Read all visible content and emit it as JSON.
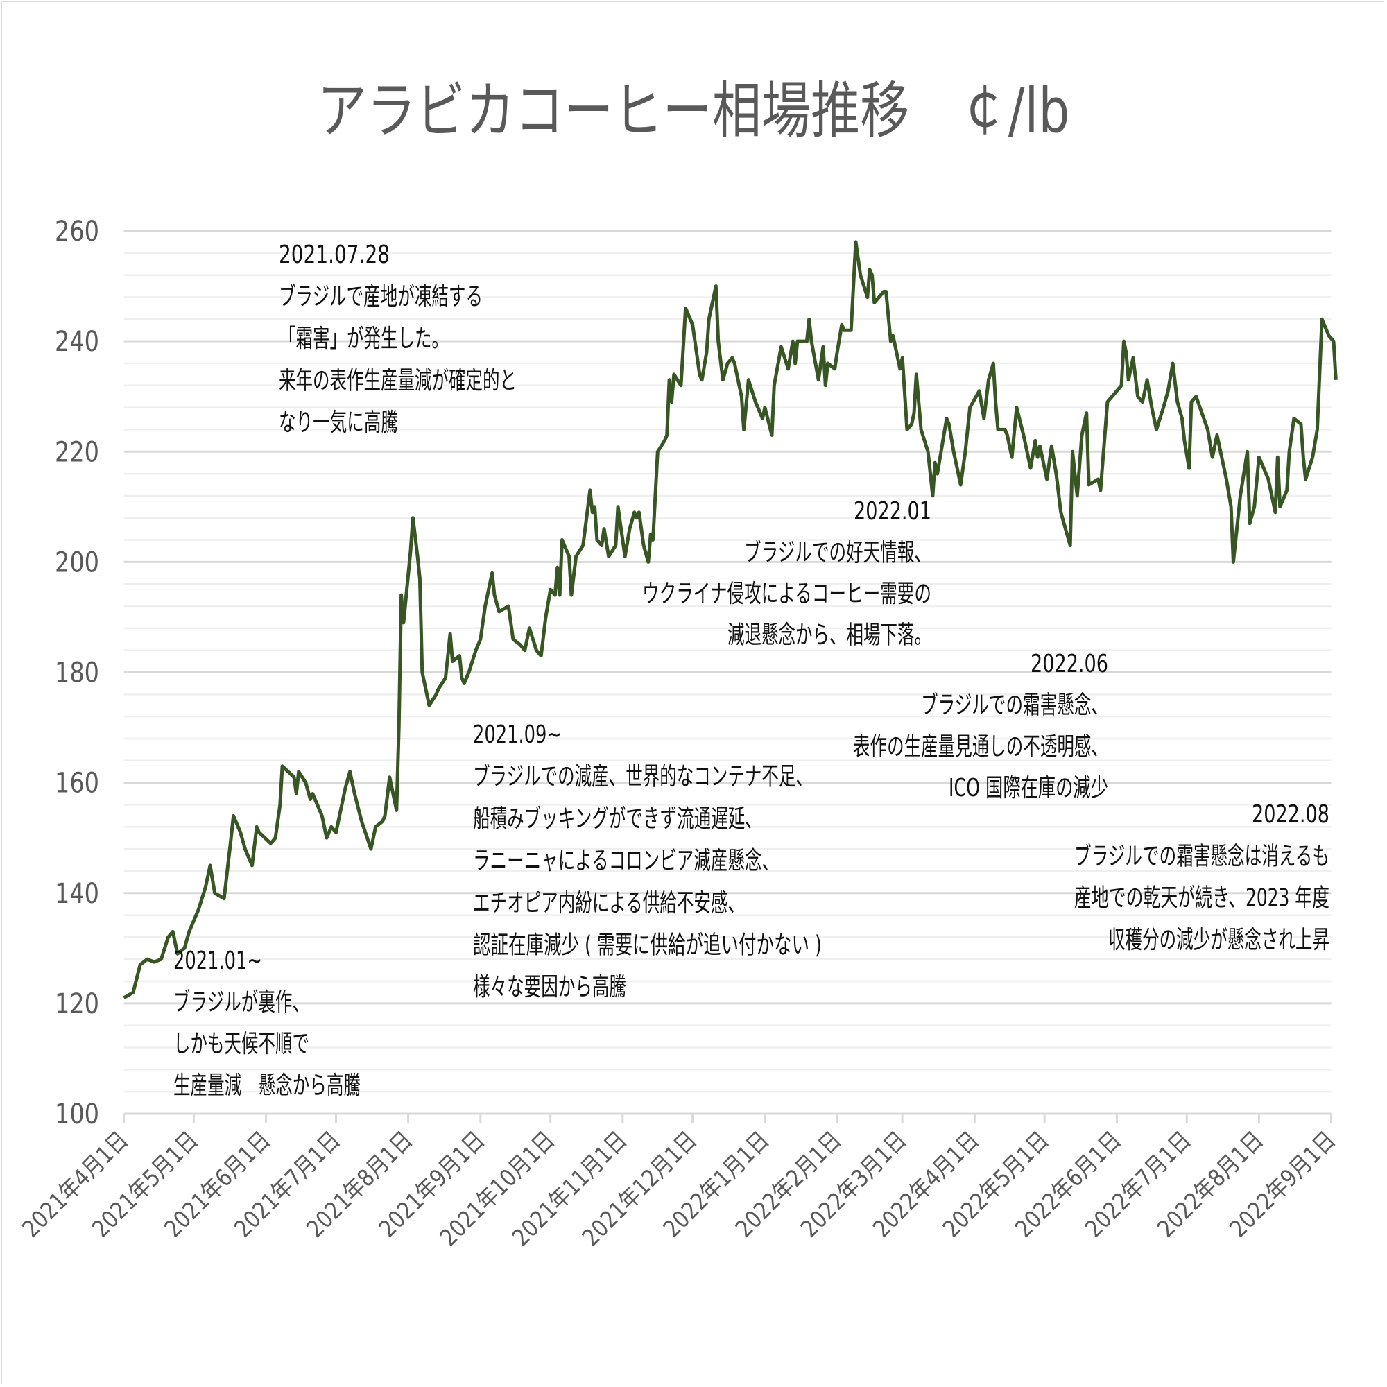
{
  "chart_data": {
    "type": "line",
    "title": "アラビカコーヒー相場推移　￠/lb",
    "xlabel": "",
    "ylabel": "",
    "ylim": [
      100,
      260
    ],
    "yticks": [
      100,
      120,
      140,
      160,
      180,
      200,
      220,
      240,
      260
    ],
    "xticks": [
      "2021年4月1日",
      "2021年5月1日",
      "2021年6月1日",
      "2021年7月1日",
      "2021年8月1日",
      "2021年9月1日",
      "2021年10月1日",
      "2021年11月1日",
      "2021年12月1日",
      "2022年1月1日",
      "2022年2月1日",
      "2022年3月1日",
      "2022年4月1日",
      "2022年5月1日",
      "2022年6月1日",
      "2022年7月1日",
      "2022年8月1日",
      "2022年9月1日"
    ],
    "grid": true,
    "line_color": "#375623",
    "series": [
      {
        "points": [
          [
            "2021-04-01",
            121
          ],
          [
            "2021-04-05",
            122
          ],
          [
            "2021-04-08",
            127
          ],
          [
            "2021-04-11",
            128
          ],
          [
            "2021-04-14",
            127.5
          ],
          [
            "2021-04-17",
            128
          ],
          [
            "2021-04-20",
            132
          ],
          [
            "2021-04-22",
            133
          ],
          [
            "2021-04-24",
            129
          ],
          [
            "2021-04-27",
            130
          ],
          [
            "2021-04-29",
            133
          ],
          [
            "2021-05-03",
            137
          ],
          [
            "2021-05-06",
            141
          ],
          [
            "2021-05-08",
            145
          ],
          [
            "2021-05-10",
            140
          ],
          [
            "2021-05-14",
            139
          ],
          [
            "2021-05-17",
            150
          ],
          [
            "2021-05-18",
            154
          ],
          [
            "2021-05-21",
            151
          ],
          [
            "2021-05-23",
            148
          ],
          [
            "2021-05-25",
            146
          ],
          [
            "2021-05-26",
            145
          ],
          [
            "2021-05-28",
            152
          ],
          [
            "2021-05-29",
            151
          ],
          [
            "2021-06-03",
            149
          ],
          [
            "2021-06-05",
            150
          ],
          [
            "2021-06-07",
            156
          ],
          [
            "2021-06-08",
            163
          ],
          [
            "2021-06-13",
            161
          ],
          [
            "2021-06-14",
            158
          ],
          [
            "2021-06-15",
            162
          ],
          [
            "2021-06-18",
            160
          ],
          [
            "2021-06-20",
            157
          ],
          [
            "2021-06-21",
            158
          ],
          [
            "2021-06-25",
            154
          ],
          [
            "2021-06-27",
            150
          ],
          [
            "2021-06-29",
            152
          ],
          [
            "2021-07-01",
            151
          ],
          [
            "2021-07-03",
            155
          ],
          [
            "2021-07-05",
            159
          ],
          [
            "2021-07-07",
            162
          ],
          [
            "2021-07-09",
            158
          ],
          [
            "2021-07-12",
            153
          ],
          [
            "2021-07-16",
            148
          ],
          [
            "2021-07-18",
            152
          ],
          [
            "2021-07-21",
            153
          ],
          [
            "2021-07-22",
            154
          ],
          [
            "2021-07-24",
            161
          ],
          [
            "2021-07-27",
            155
          ],
          [
            "2021-07-28",
            170
          ],
          [
            "2021-07-29",
            194
          ],
          [
            "2021-07-30",
            189
          ],
          [
            "2021-08-02",
            202
          ],
          [
            "2021-08-03",
            208
          ],
          [
            "2021-08-05",
            201
          ],
          [
            "2021-08-06",
            197
          ],
          [
            "2021-08-07",
            180
          ],
          [
            "2021-08-10",
            174
          ],
          [
            "2021-08-13",
            176
          ],
          [
            "2021-08-14",
            177
          ],
          [
            "2021-08-17",
            179
          ],
          [
            "2021-08-18",
            183
          ],
          [
            "2021-08-19",
            187
          ],
          [
            "2021-08-20",
            182
          ],
          [
            "2021-08-23",
            183
          ],
          [
            "2021-08-24",
            179
          ],
          [
            "2021-08-25",
            178
          ],
          [
            "2021-08-27",
            180
          ],
          [
            "2021-08-30",
            184
          ],
          [
            "2021-09-01",
            186
          ],
          [
            "2021-09-03",
            192
          ],
          [
            "2021-09-06",
            198
          ],
          [
            "2021-09-07",
            194
          ],
          [
            "2021-09-09",
            191
          ],
          [
            "2021-09-13",
            192
          ],
          [
            "2021-09-15",
            186
          ],
          [
            "2021-09-18",
            185
          ],
          [
            "2021-09-20",
            184
          ],
          [
            "2021-09-22",
            188
          ],
          [
            "2021-09-25",
            184
          ],
          [
            "2021-09-27",
            183
          ],
          [
            "2021-09-29",
            190
          ],
          [
            "2021-10-01",
            195
          ],
          [
            "2021-10-03",
            194
          ],
          [
            "2021-10-04",
            199
          ],
          [
            "2021-10-05",
            194
          ],
          [
            "2021-10-06",
            204
          ],
          [
            "2021-10-09",
            201
          ],
          [
            "2021-10-10",
            194
          ],
          [
            "2021-10-12",
            201
          ],
          [
            "2021-10-15",
            203
          ],
          [
            "2021-10-18",
            213
          ],
          [
            "2021-10-19",
            209
          ],
          [
            "2021-10-20",
            210
          ],
          [
            "2021-10-21",
            204
          ],
          [
            "2021-10-23",
            203
          ],
          [
            "2021-10-24",
            206
          ],
          [
            "2021-10-26",
            201
          ],
          [
            "2021-10-29",
            203
          ],
          [
            "2021-10-30",
            210
          ],
          [
            "2021-11-02",
            201
          ],
          [
            "2021-11-04",
            206
          ],
          [
            "2021-11-06",
            209
          ],
          [
            "2021-11-07",
            208
          ],
          [
            "2021-11-08",
            209
          ],
          [
            "2021-11-10",
            203
          ],
          [
            "2021-11-12",
            200
          ],
          [
            "2021-11-13",
            205
          ],
          [
            "2021-11-14",
            204
          ],
          [
            "2021-11-16",
            220
          ],
          [
            "2021-11-19",
            222
          ],
          [
            "2021-11-20",
            223
          ],
          [
            "2021-11-21",
            233
          ],
          [
            "2021-11-22",
            229
          ],
          [
            "2021-11-23",
            234
          ],
          [
            "2021-11-26",
            232
          ],
          [
            "2021-11-28",
            246
          ],
          [
            "2021-12-01",
            243
          ],
          [
            "2021-12-04",
            234
          ],
          [
            "2021-12-05",
            233
          ],
          [
            "2021-12-07",
            238
          ],
          [
            "2021-12-08",
            244
          ],
          [
            "2021-12-11",
            250
          ],
          [
            "2021-12-12",
            240
          ],
          [
            "2021-12-14",
            233
          ],
          [
            "2021-12-16",
            236
          ],
          [
            "2021-12-18",
            237
          ],
          [
            "2021-12-19",
            236
          ],
          [
            "2021-12-22",
            230
          ],
          [
            "2021-12-23",
            224
          ],
          [
            "2021-12-25",
            233
          ],
          [
            "2021-12-28",
            229
          ],
          [
            "2021-12-31",
            226
          ],
          [
            "2022-01-01",
            228
          ],
          [
            "2022-01-04",
            223
          ],
          [
            "2022-01-05",
            232
          ],
          [
            "2022-01-08",
            239
          ],
          [
            "2022-01-11",
            235
          ],
          [
            "2022-01-13",
            240
          ],
          [
            "2022-01-14",
            236
          ],
          [
            "2022-01-15",
            240
          ],
          [
            "2022-01-19",
            240
          ],
          [
            "2022-01-20",
            244
          ],
          [
            "2022-01-21",
            240
          ],
          [
            "2022-01-24",
            233
          ],
          [
            "2022-01-26",
            239
          ],
          [
            "2022-01-27",
            232
          ],
          [
            "2022-01-28",
            236
          ],
          [
            "2022-01-31",
            235
          ],
          [
            "2022-02-01",
            238
          ],
          [
            "2022-02-03",
            243
          ],
          [
            "2022-02-04",
            242
          ],
          [
            "2022-02-07",
            242
          ],
          [
            "2022-02-09",
            258
          ],
          [
            "2022-02-11",
            252
          ],
          [
            "2022-02-14",
            248
          ],
          [
            "2022-02-15",
            253
          ],
          [
            "2022-02-16",
            252
          ],
          [
            "2022-02-17",
            247
          ],
          [
            "2022-02-21",
            249
          ],
          [
            "2022-02-22",
            249
          ],
          [
            "2022-02-24",
            240
          ],
          [
            "2022-02-25",
            241
          ],
          [
            "2022-02-28",
            235
          ],
          [
            "2022-03-01",
            237
          ],
          [
            "2022-03-03",
            224
          ],
          [
            "2022-03-05",
            225
          ],
          [
            "2022-03-06",
            227
          ],
          [
            "2022-03-07",
            234
          ],
          [
            "2022-03-09",
            224
          ],
          [
            "2022-03-12",
            220
          ],
          [
            "2022-03-14",
            212
          ],
          [
            "2022-03-15",
            218
          ],
          [
            "2022-03-16",
            216
          ],
          [
            "2022-03-18",
            221
          ],
          [
            "2022-03-20",
            226
          ],
          [
            "2022-03-21",
            225
          ],
          [
            "2022-03-23",
            220
          ],
          [
            "2022-03-26",
            214
          ],
          [
            "2022-03-28",
            220
          ],
          [
            "2022-03-30",
            228
          ],
          [
            "2022-04-03",
            231
          ],
          [
            "2022-04-05",
            226
          ],
          [
            "2022-04-07",
            233
          ],
          [
            "2022-04-09",
            236
          ],
          [
            "2022-04-10",
            229
          ],
          [
            "2022-04-11",
            224
          ],
          [
            "2022-04-14",
            224
          ],
          [
            "2022-04-15",
            223
          ],
          [
            "2022-04-17",
            219
          ],
          [
            "2022-04-19",
            228
          ],
          [
            "2022-04-22",
            223
          ],
          [
            "2022-04-25",
            217
          ],
          [
            "2022-04-27",
            222
          ],
          [
            "2022-04-28",
            219
          ],
          [
            "2022-04-29",
            221
          ],
          [
            "2022-05-02",
            215
          ],
          [
            "2022-05-04",
            221
          ],
          [
            "2022-05-06",
            216
          ],
          [
            "2022-05-08",
            209
          ],
          [
            "2022-05-12",
            203
          ],
          [
            "2022-05-13",
            220
          ],
          [
            "2022-05-15",
            212
          ],
          [
            "2022-05-17",
            223
          ],
          [
            "2022-05-19",
            227
          ],
          [
            "2022-05-20",
            214
          ],
          [
            "2022-05-24",
            215
          ],
          [
            "2022-05-25",
            213
          ],
          [
            "2022-05-28",
            229
          ],
          [
            "2022-06-03",
            232
          ],
          [
            "2022-06-04",
            240
          ],
          [
            "2022-06-05",
            238
          ],
          [
            "2022-06-06",
            233
          ],
          [
            "2022-06-08",
            237
          ],
          [
            "2022-06-10",
            230
          ],
          [
            "2022-06-12",
            229
          ],
          [
            "2022-06-14",
            233
          ],
          [
            "2022-06-16",
            228
          ],
          [
            "2022-06-18",
            224
          ],
          [
            "2022-06-21",
            228
          ],
          [
            "2022-06-23",
            231
          ],
          [
            "2022-06-25",
            236
          ],
          [
            "2022-06-27",
            229
          ],
          [
            "2022-06-29",
            226
          ],
          [
            "2022-06-30",
            222
          ],
          [
            "2022-07-02",
            217
          ],
          [
            "2022-07-03",
            229
          ],
          [
            "2022-07-05",
            230
          ],
          [
            "2022-07-10",
            224
          ],
          [
            "2022-07-12",
            219
          ],
          [
            "2022-07-14",
            223
          ],
          [
            "2022-07-18",
            215
          ],
          [
            "2022-07-20",
            210
          ],
          [
            "2022-07-21",
            200
          ],
          [
            "2022-07-24",
            212
          ],
          [
            "2022-07-27",
            220
          ],
          [
            "2022-07-28",
            207
          ],
          [
            "2022-07-30",
            210
          ],
          [
            "2022-08-01",
            219
          ],
          [
            "2022-08-05",
            215
          ],
          [
            "2022-08-08",
            209
          ],
          [
            "2022-08-09",
            219
          ],
          [
            "2022-08-10",
            210
          ],
          [
            "2022-08-13",
            213
          ],
          [
            "2022-08-14",
            220
          ],
          [
            "2022-08-16",
            226
          ],
          [
            "2022-08-19",
            225
          ],
          [
            "2022-08-20",
            219
          ],
          [
            "2022-08-21",
            215
          ],
          [
            "2022-08-24",
            219
          ],
          [
            "2022-08-26",
            224
          ],
          [
            "2022-08-28",
            244
          ],
          [
            "2022-08-29",
            243
          ],
          [
            "2022-08-31",
            241
          ],
          [
            "2022-09-02",
            240
          ],
          [
            "2022-09-03",
            233
          ]
        ]
      }
    ],
    "annotations": [
      {
        "lines": [
          "2021.01~",
          "ブラジルが裏作、",
          "しかも天候不順で",
          "生産量減　懸念から高騰"
        ]
      },
      {
        "lines": [
          "2021.07.28",
          "ブラジルで産地が凍結する",
          "「霜害」が発生した。",
          "来年の表作生産量減が確定的と",
          "なり一気に高騰"
        ]
      },
      {
        "lines": [
          "2021.09~",
          "ブラジルでの減産、世界的なコンテナ不足、",
          "船積みブッキングができず流通遅延、",
          "ラニーニャによるコロンビア減産懸念、",
          "エチオピア内紛による供給不安感、",
          "認証在庫減少 ( 需要に供給が追い付かない )",
          "様々な要因から高騰"
        ]
      },
      {
        "lines": [
          "2022.01",
          "ブラジルでの好天情報、",
          "ウクライナ侵攻によるコーヒー需要の",
          "減退懸念から、相場下落。"
        ]
      },
      {
        "lines": [
          "2022.06",
          "ブラジルでの霜害懸念、",
          "表作の生産量見通しの不透明感、",
          "ICO 国際在庫の減少"
        ]
      },
      {
        "lines": [
          "2022.08",
          "ブラジルでの霜害懸念は消えるも",
          "産地での乾天が続き、2023 年度",
          "収穫分の減少が懸念され上昇"
        ]
      }
    ]
  }
}
